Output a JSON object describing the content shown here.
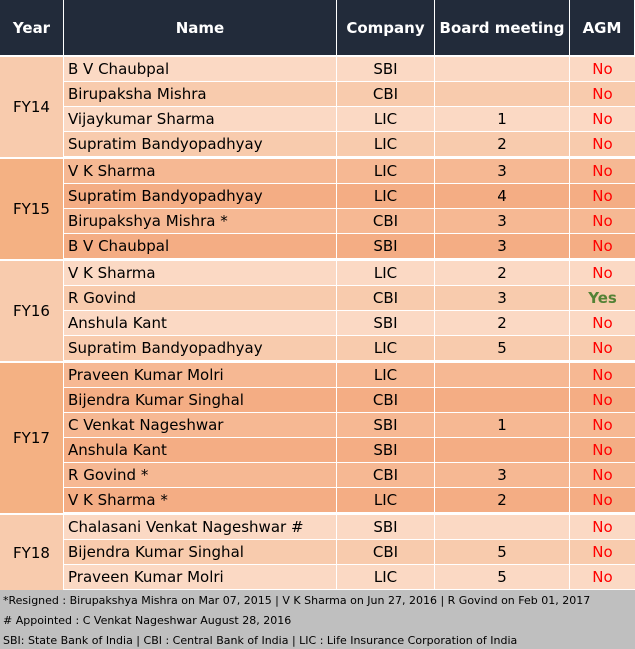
{
  "table": {
    "header": [
      "Year",
      "Name",
      "Company",
      "Board meeting",
      "AGM"
    ],
    "groups": [
      {
        "year": "FY14",
        "rows": [
          [
            "B V Chaubpal",
            "SBI",
            null,
            "No"
          ],
          [
            "Birupaksha Mishra",
            "CBI",
            null,
            "No"
          ],
          [
            "Vijaykumar Sharma",
            "LIC",
            1,
            "No"
          ],
          [
            "Supratim Bandyopadhyay",
            "LIC",
            2,
            "No"
          ]
        ]
      },
      {
        "year": "FY15",
        "rows": [
          [
            "V K Sharma",
            "LIC",
            3,
            "No"
          ],
          [
            "Supratim Bandyopadhyay",
            "LIC",
            4,
            "No"
          ],
          [
            "Birupakshya Mishra *",
            "CBI",
            3,
            "No"
          ],
          [
            "B V Chaubpal",
            "SBI",
            3,
            "No"
          ]
        ]
      },
      {
        "year": "FY16",
        "rows": [
          [
            "V K Sharma",
            "LIC",
            2,
            "No"
          ],
          [
            "R Govind",
            "CBI",
            3,
            "Yes"
          ],
          [
            "Anshula Kant",
            "SBI",
            2,
            "No"
          ],
          [
            "Supratim Bandyopadhyay",
            "LIC",
            5,
            "No"
          ]
        ]
      },
      {
        "year": "FY17",
        "rows": [
          [
            "Praveen Kumar Molri",
            "LIC",
            null,
            "No"
          ],
          [
            "Bijendra Kumar Singhal",
            "CBI",
            null,
            "No"
          ],
          [
            "C Venkat Nageshwar",
            "SBI",
            1,
            "No"
          ],
          [
            "Anshula Kant",
            "SBI",
            null,
            "No"
          ],
          [
            "R Govind *",
            "CBI",
            3,
            "No"
          ],
          [
            "V K Sharma *",
            "LIC",
            2,
            "No"
          ]
        ]
      },
      {
        "year": "FY18",
        "rows": [
          [
            "Chalasani Venkat Nageshwar #",
            "SBI",
            null,
            "No"
          ],
          [
            "Bijendra Kumar Singhal",
            "CBI",
            5,
            "No"
          ],
          [
            "Praveen Kumar Molri",
            "LIC",
            5,
            "No"
          ]
        ]
      }
    ],
    "notes": [
      "*Resigned :  Birupakshya Mishra on Mar 07, 2015 | V K Sharma on Jun 27, 2016  | R Govind on Feb 01, 2017",
      "# Appointed : C Venkat Nageshwar August  28, 2016",
      "SBI: State Bank of India | CBI : Central Bank of India | LIC : Life Insurance Corporation of India"
    ]
  }
}
